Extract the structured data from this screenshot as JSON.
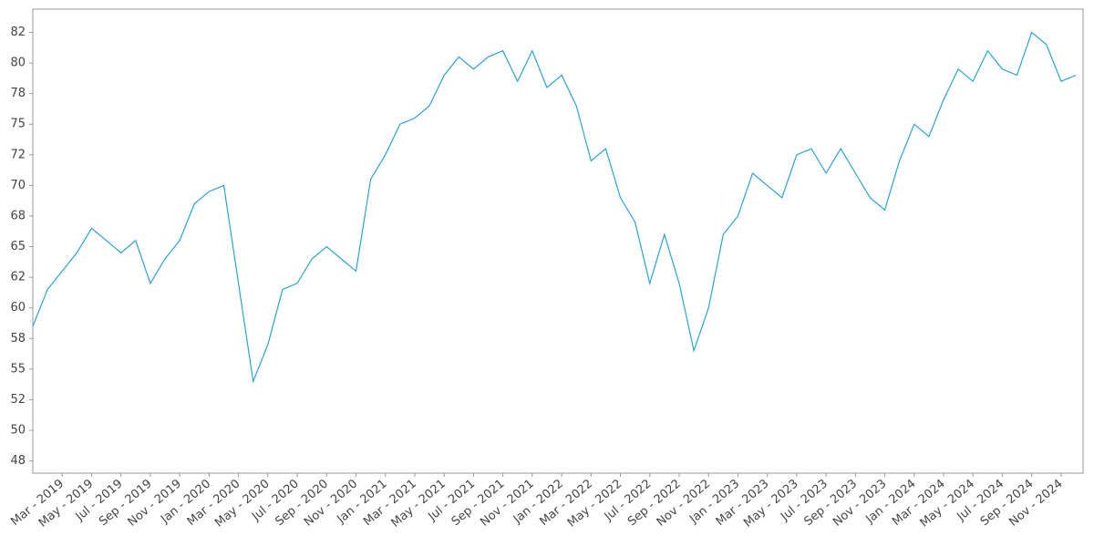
{
  "chart_data": {
    "type": "line",
    "x": [
      "2019-01",
      "2019-02",
      "2019-03",
      "2019-04",
      "2019-05",
      "2019-06",
      "2019-07",
      "2019-08",
      "2019-09",
      "2019-10",
      "2019-11",
      "2019-12",
      "2020-01",
      "2020-02",
      "2020-03",
      "2020-04",
      "2020-05",
      "2020-06",
      "2020-07",
      "2020-08",
      "2020-09",
      "2020-10",
      "2020-11",
      "2020-12",
      "2021-01",
      "2021-02",
      "2021-03",
      "2021-04",
      "2021-05",
      "2021-06",
      "2021-07",
      "2021-08",
      "2021-09",
      "2021-10",
      "2021-11",
      "2021-12",
      "2022-01",
      "2022-02",
      "2022-03",
      "2022-04",
      "2022-05",
      "2022-06",
      "2022-07",
      "2022-08",
      "2022-09",
      "2022-10",
      "2022-11",
      "2022-12",
      "2023-01",
      "2023-02",
      "2023-03",
      "2023-04",
      "2023-05",
      "2023-06",
      "2023-07",
      "2023-08",
      "2023-09",
      "2023-10",
      "2023-11",
      "2023-12",
      "2024-01",
      "2024-02",
      "2024-03",
      "2024-04",
      "2024-05",
      "2024-06",
      "2024-07",
      "2024-08",
      "2024-09",
      "2024-10",
      "2024-11",
      "2024-12"
    ],
    "series": [
      {
        "color": "#29a3d6",
        "values": [
          58.5,
          61.5,
          63,
          64.5,
          66.5,
          65.5,
          64.5,
          65.5,
          62,
          64,
          65.5,
          68.5,
          69.5,
          70,
          62,
          54,
          57,
          61.5,
          62,
          64,
          65,
          64,
          63,
          70.5,
          72.5,
          75,
          75.5,
          76.5,
          79,
          80.5,
          79.5,
          80.5,
          81,
          78.5,
          81,
          78,
          79,
          76.5,
          72,
          73,
          69,
          67,
          62,
          66,
          62,
          56.5,
          60,
          66,
          67.5,
          71,
          70,
          69,
          72.5,
          73,
          71,
          73,
          71,
          69,
          68,
          72,
          75,
          74,
          77,
          79.5,
          78.5,
          81,
          79.5,
          79,
          82.5,
          81.5,
          78.5,
          79
        ]
      }
    ],
    "xlim": [
      "2019-01",
      "2024-12"
    ],
    "xticks": [
      {
        "value": "2019-03",
        "label": "Mar - 2019"
      },
      {
        "value": "2019-05",
        "label": "May - 2019"
      },
      {
        "value": "2019-07",
        "label": "Jul - 2019"
      },
      {
        "value": "2019-09",
        "label": "Sep - 2019"
      },
      {
        "value": "2019-11",
        "label": "Nov - 2019"
      },
      {
        "value": "2020-01",
        "label": "Jan - 2020"
      },
      {
        "value": "2020-03",
        "label": "Mar - 2020"
      },
      {
        "value": "2020-05",
        "label": "May - 2020"
      },
      {
        "value": "2020-07",
        "label": "Jul - 2020"
      },
      {
        "value": "2020-09",
        "label": "Sep - 2020"
      },
      {
        "value": "2020-11",
        "label": "Nov - 2020"
      },
      {
        "value": "2021-01",
        "label": "Jan - 2021"
      },
      {
        "value": "2021-03",
        "label": "Mar - 2021"
      },
      {
        "value": "2021-05",
        "label": "May - 2021"
      },
      {
        "value": "2021-07",
        "label": "Jul - 2021"
      },
      {
        "value": "2021-09",
        "label": "Sep - 2021"
      },
      {
        "value": "2021-11",
        "label": "Nov - 2021"
      },
      {
        "value": "2022-01",
        "label": "Jan - 2022"
      },
      {
        "value": "2022-03",
        "label": "Mar - 2022"
      },
      {
        "value": "2022-05",
        "label": "May - 2022"
      },
      {
        "value": "2022-07",
        "label": "Jul - 2022"
      },
      {
        "value": "2022-09",
        "label": "Sep - 2022"
      },
      {
        "value": "2022-11",
        "label": "Nov - 2022"
      },
      {
        "value": "2023-01",
        "label": "Jan - 2023"
      },
      {
        "value": "2023-03",
        "label": "Mar - 2023"
      },
      {
        "value": "2023-05",
        "label": "May - 2023"
      },
      {
        "value": "2023-07",
        "label": "Jul - 2023"
      },
      {
        "value": "2023-09",
        "label": "Sep - 2023"
      },
      {
        "value": "2023-11",
        "label": "Nov - 2023"
      },
      {
        "value": "2024-01",
        "label": "Jan - 2024"
      },
      {
        "value": "2024-03",
        "label": "Mar - 2024"
      },
      {
        "value": "2024-05",
        "label": "May - 2024"
      },
      {
        "value": "2024-07",
        "label": "Jul - 2024"
      },
      {
        "value": "2024-09",
        "label": "Sep - 2024"
      },
      {
        "value": "2024-11",
        "label": "Nov - 2024"
      }
    ],
    "ylim": [
      46.5,
      84.4
    ],
    "yticks": [
      {
        "value": 47.5,
        "label": "48"
      },
      50,
      {
        "value": 52.5,
        "label": "52"
      },
      55,
      {
        "value": 57.5,
        "label": "58"
      },
      60,
      {
        "value": 62.5,
        "label": "62"
      },
      65,
      {
        "value": 67.5,
        "label": "68"
      },
      70,
      {
        "value": 72.5,
        "label": "72"
      },
      75,
      {
        "value": 77.5,
        "label": "78"
      },
      80,
      {
        "value": 82.5,
        "label": "82"
      }
    ]
  }
}
